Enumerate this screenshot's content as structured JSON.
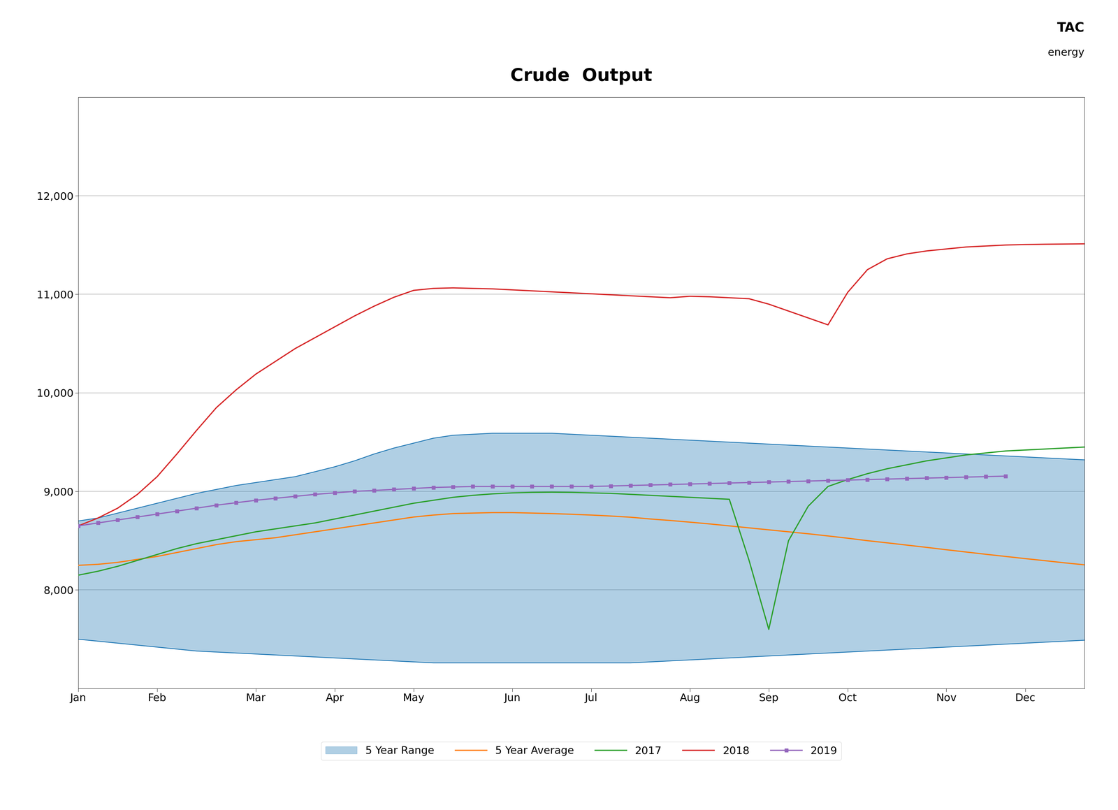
{
  "chart_data": {
    "type": "line",
    "title": "Crude  Output",
    "annotations": [
      "TAC",
      "energy"
    ],
    "categories": [
      "Jan",
      null,
      null,
      null,
      "Feb",
      null,
      null,
      null,
      null,
      "Mar",
      null,
      null,
      null,
      "Apr",
      null,
      null,
      null,
      "May",
      null,
      null,
      null,
      null,
      "Jun",
      null,
      null,
      null,
      "Jul",
      null,
      null,
      null,
      null,
      "Aug",
      null,
      null,
      null,
      "Sep",
      null,
      null,
      null,
      "Oct",
      null,
      null,
      null,
      null,
      "Nov",
      null,
      null,
      null,
      "Dec",
      null,
      null,
      null
    ],
    "ylim": [
      7000,
      13000
    ],
    "yticks": [
      {
        "value": 8000,
        "label": "8,000"
      },
      {
        "value": 9000,
        "label": "9,000"
      },
      {
        "value": 10000,
        "label": "10,000"
      },
      {
        "value": 11000,
        "label": "11,000"
      },
      {
        "value": 12000,
        "label": "12,000"
      }
    ],
    "grid": true,
    "legend": "lower center",
    "series": [
      {
        "name": "5 Year Range",
        "type": "range",
        "low": [
          7500,
          7480,
          7460,
          7440,
          7420,
          7400,
          7380,
          7370,
          7360,
          7350,
          7340,
          7330,
          7320,
          7310,
          7300,
          7290,
          7280,
          7270,
          7260,
          7260,
          7260,
          7260,
          7260,
          7260,
          7260,
          7260,
          7260,
          7260,
          7260,
          7270,
          7280,
          7290,
          7300,
          7310,
          7320,
          7330,
          7340,
          7350,
          7360,
          7370,
          7380,
          7390,
          7400,
          7410,
          7420,
          7430,
          7440,
          7450,
          7460,
          7470,
          7480,
          7490
        ],
        "high": [
          8700,
          8730,
          8780,
          8830,
          8880,
          8930,
          8980,
          9020,
          9060,
          9090,
          9120,
          9150,
          9200,
          9250,
          9310,
          9380,
          9440,
          9490,
          9540,
          9570,
          9580,
          9590,
          9590,
          9590,
          9590,
          9580,
          9570,
          9560,
          9550,
          9540,
          9530,
          9520,
          9510,
          9500,
          9490,
          9480,
          9470,
          9460,
          9450,
          9440,
          9430,
          9420,
          9410,
          9400,
          9390,
          9380,
          9370,
          9360,
          9350,
          9340,
          9330,
          9320
        ]
      },
      {
        "name": "5 Year Average",
        "type": "line",
        "values": [
          8250,
          8260,
          8280,
          8310,
          8340,
          8380,
          8420,
          8460,
          8490,
          8510,
          8530,
          8560,
          8590,
          8620,
          8650,
          8680,
          8710,
          8740,
          8760,
          8775,
          8780,
          8785,
          8785,
          8780,
          8775,
          8768,
          8760,
          8750,
          8738,
          8720,
          8705,
          8688,
          8670,
          8650,
          8630,
          8610,
          8590,
          8570,
          8548,
          8525,
          8500,
          8478,
          8455,
          8432,
          8408,
          8385,
          8362,
          8340,
          8318,
          8297,
          8275,
          8255
        ]
      },
      {
        "name": "2017",
        "type": "line",
        "values": [
          8150,
          8190,
          8240,
          8300,
          8360,
          8420,
          8470,
          8510,
          8550,
          8590,
          8620,
          8650,
          8680,
          8720,
          8760,
          8800,
          8840,
          8880,
          8910,
          8940,
          8960,
          8975,
          8985,
          8990,
          8992,
          8990,
          8985,
          8980,
          8970,
          8960,
          8950,
          8940,
          8930,
          8920,
          8300,
          7600,
          8500,
          8850,
          9050,
          9120,
          9180,
          9230,
          9270,
          9310,
          9340,
          9370,
          9390,
          9410,
          9420,
          9430,
          9440,
          9450
        ]
      },
      {
        "name": "2018",
        "type": "line",
        "values": [
          8650,
          8730,
          8830,
          8970,
          9150,
          9380,
          9620,
          9850,
          10030,
          10190,
          10320,
          10450,
          10560,
          10670,
          10780,
          10880,
          10970,
          11040,
          11060,
          11065,
          11060,
          11055,
          11045,
          11035,
          11025,
          11015,
          11005,
          10995,
          10985,
          10975,
          10965,
          10980,
          10975,
          10965,
          10955,
          10900,
          10830,
          10760,
          10690,
          11020,
          11250,
          11360,
          11410,
          11440,
          11460,
          11480,
          11490,
          11500,
          11505,
          11508,
          11510,
          11512
        ]
      },
      {
        "name": "2019",
        "type": "line",
        "marker": "square",
        "values": [
          8650,
          8680,
          8710,
          8740,
          8770,
          8800,
          8830,
          8860,
          8885,
          8910,
          8930,
          8950,
          8970,
          8985,
          9000,
          9010,
          9020,
          9030,
          9040,
          9045,
          9050,
          9050,
          9050,
          9050,
          9050,
          9050,
          9050,
          9055,
          9060,
          9065,
          9070,
          9075,
          9080,
          9085,
          9090,
          9095,
          9100,
          9105,
          9110,
          9115,
          9120,
          9125,
          9130,
          9135,
          9140,
          9145,
          9150,
          9155,
          null,
          null,
          null,
          null
        ]
      }
    ]
  }
}
